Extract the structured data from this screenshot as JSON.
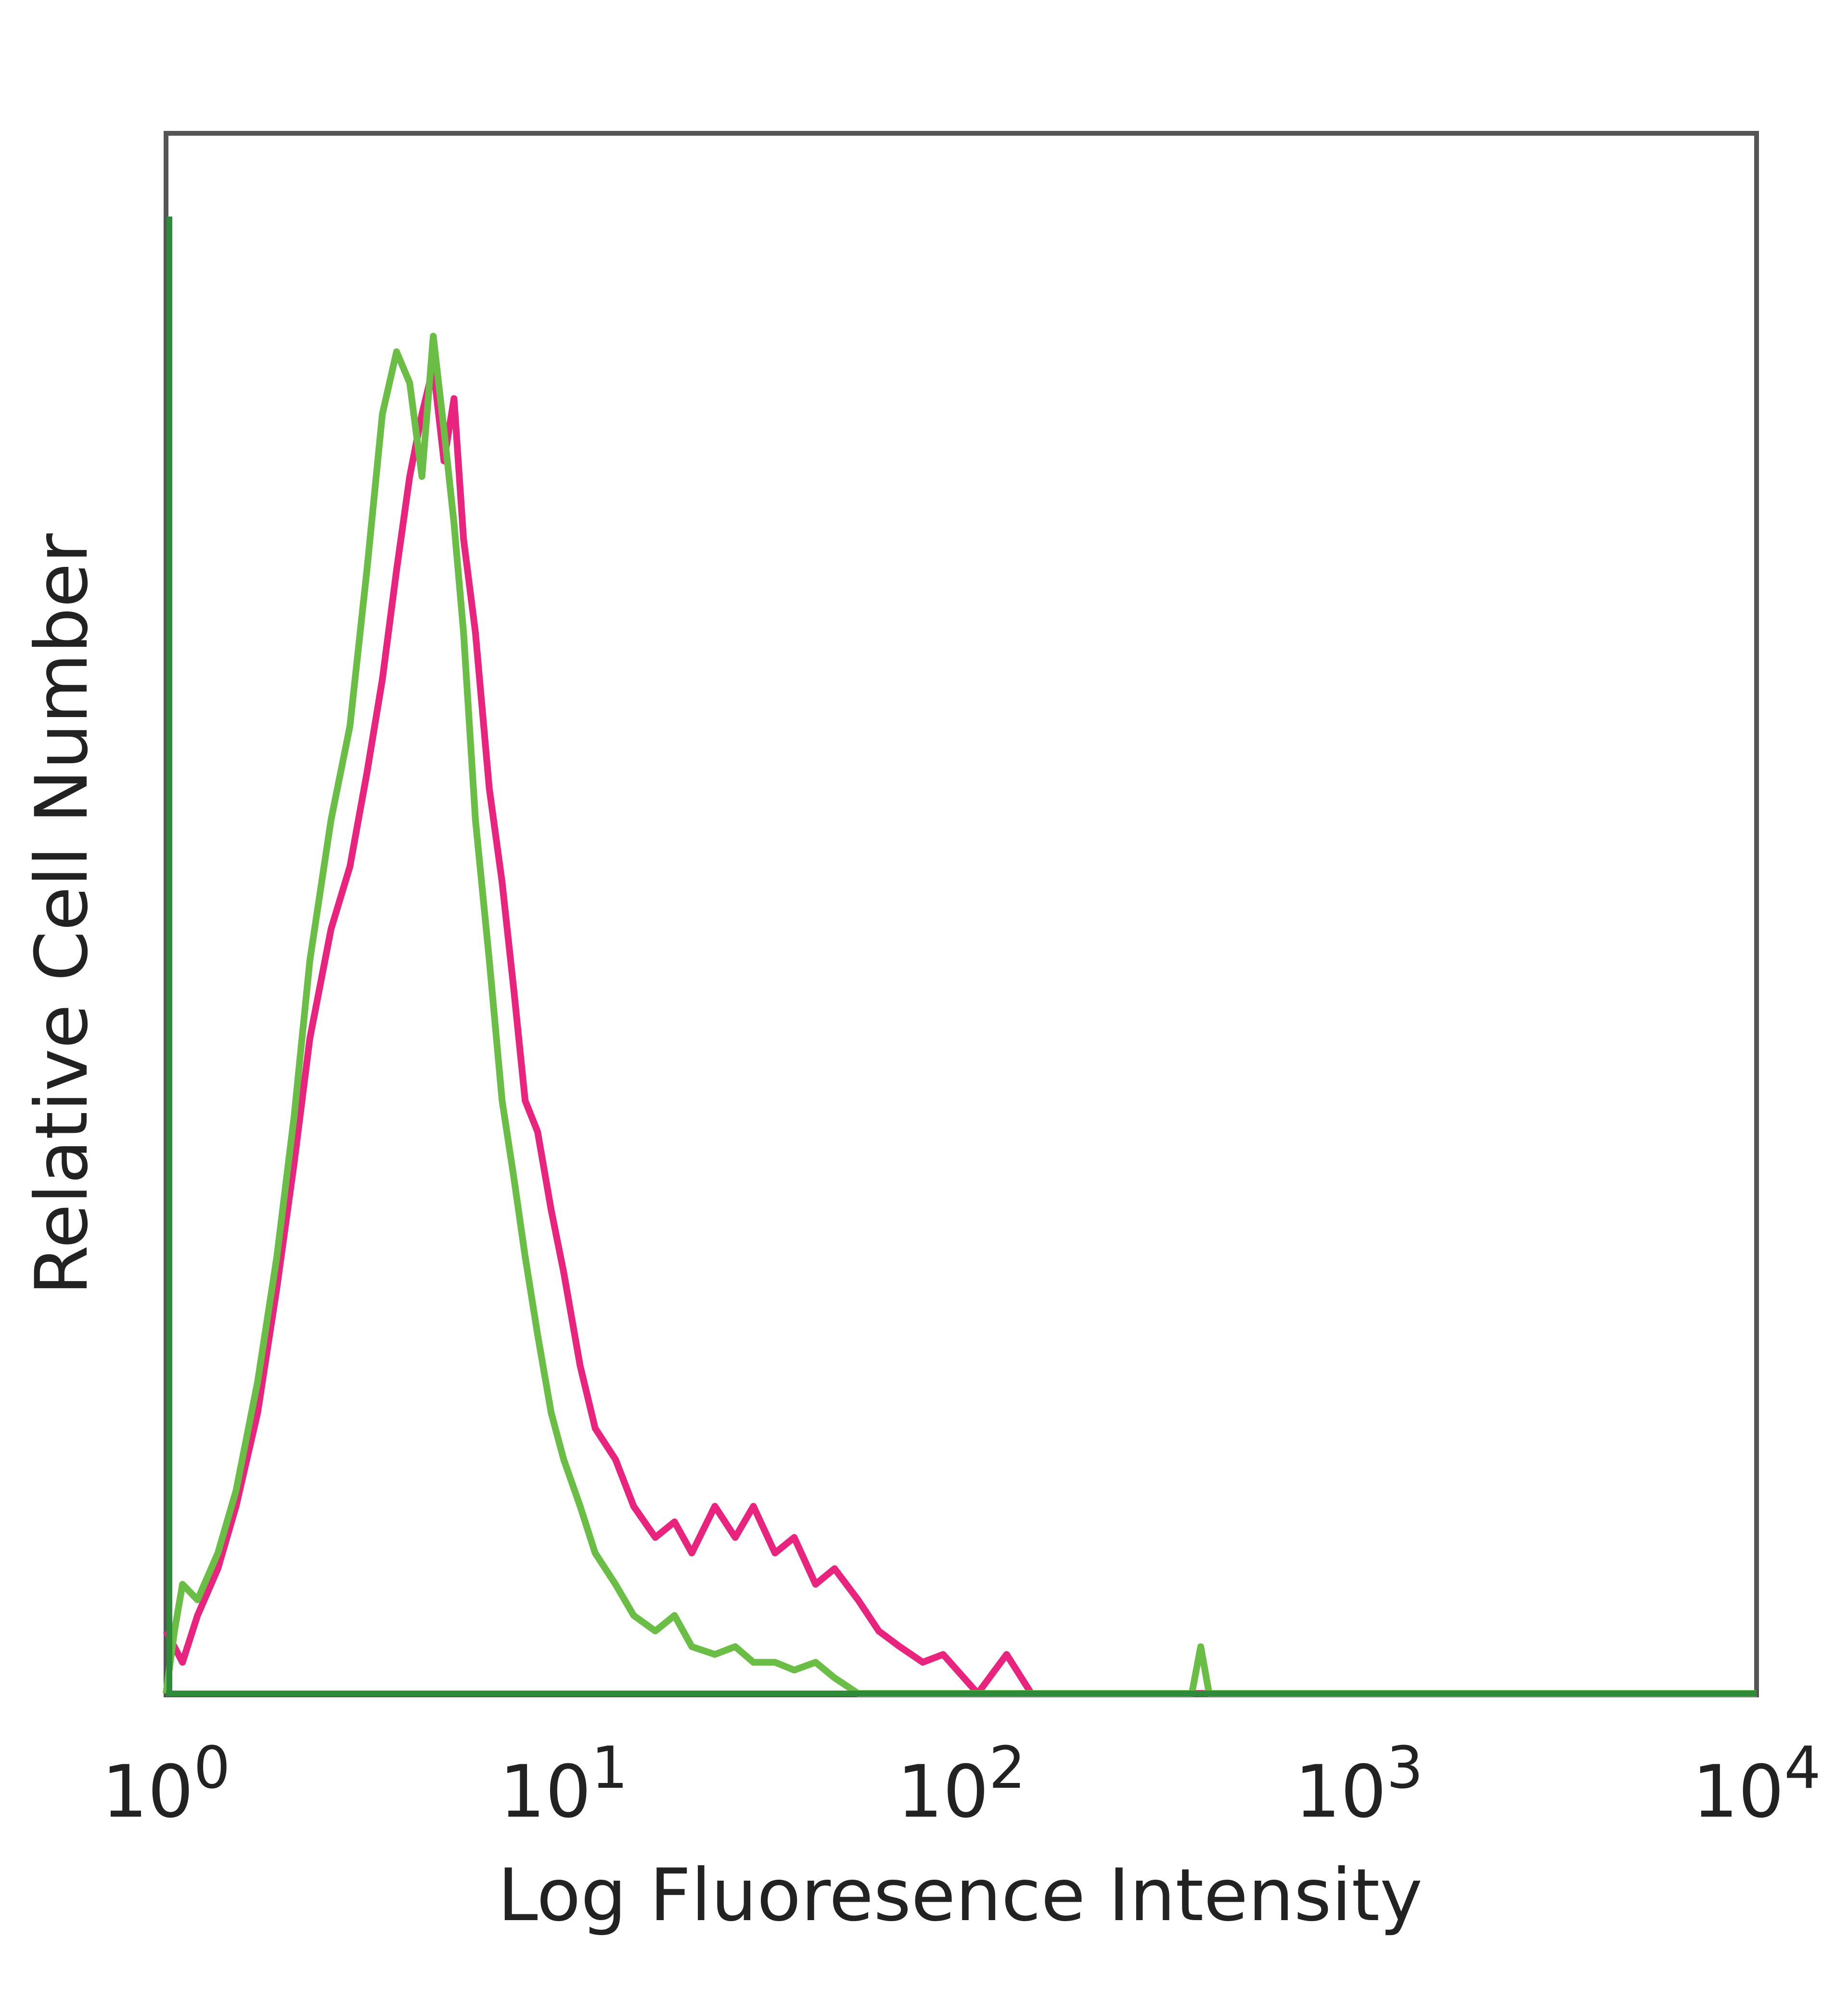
{
  "chart_data": {
    "type": "line",
    "title": "",
    "xlabel": "Log Fluoresence Intensity",
    "ylabel": "Relative Cell Number",
    "x_scale": "log",
    "xlim": [
      1,
      10000
    ],
    "ylim": [
      0,
      1
    ],
    "grid": false,
    "legend": "none",
    "x_ticks": [
      {
        "value": 1,
        "base": "10",
        "exp": "0"
      },
      {
        "value": 10,
        "base": "10",
        "exp": "1"
      },
      {
        "value": 100,
        "base": "10",
        "exp": "2"
      },
      {
        "value": 1000,
        "base": "10",
        "exp": "3"
      },
      {
        "value": 10000,
        "base": "10",
        "exp": "4"
      }
    ],
    "series": [
      {
        "color": "#e8247f",
        "x": [
          1.0,
          1.1,
          1.2,
          1.35,
          1.5,
          1.7,
          1.9,
          2.1,
          2.3,
          2.6,
          2.9,
          3.2,
          3.5,
          3.8,
          4.1,
          4.4,
          4.7,
          5.0,
          5.3,
          5.6,
          6.0,
          6.5,
          7.0,
          7.5,
          8.0,
          8.6,
          9.3,
          10.0,
          11.0,
          12.0,
          13.5,
          15.0,
          17.0,
          19.0,
          21.0,
          24.0,
          27.0,
          30.0,
          34.0,
          38.0,
          43.0,
          48.0,
          55.0,
          62.0,
          70.0,
          80.0,
          90.0,
          110.0,
          130.0,
          150.0,
          200.0,
          400.0,
          1000.0,
          10000.0
        ],
        "y": [
          0.04,
          0.02,
          0.05,
          0.08,
          0.12,
          0.18,
          0.26,
          0.34,
          0.42,
          0.49,
          0.53,
          0.59,
          0.65,
          0.72,
          0.78,
          0.82,
          0.85,
          0.79,
          0.83,
          0.74,
          0.68,
          0.58,
          0.52,
          0.45,
          0.38,
          0.36,
          0.31,
          0.27,
          0.21,
          0.17,
          0.15,
          0.12,
          0.1,
          0.11,
          0.09,
          0.12,
          0.1,
          0.12,
          0.09,
          0.1,
          0.07,
          0.08,
          0.06,
          0.04,
          0.03,
          0.02,
          0.025,
          0.0,
          0.025,
          0.0,
          0.0,
          0.0,
          0.0,
          0.0
        ]
      },
      {
        "color": "#6abd45",
        "x": [
          1.0,
          1.05,
          1.1,
          1.2,
          1.35,
          1.5,
          1.7,
          1.9,
          2.1,
          2.3,
          2.6,
          2.9,
          3.2,
          3.5,
          3.8,
          4.1,
          4.4,
          4.7,
          5.0,
          5.3,
          5.6,
          6.0,
          6.5,
          7.0,
          7.5,
          8.0,
          8.6,
          9.3,
          10.0,
          11.0,
          12.0,
          13.5,
          15.0,
          17.0,
          19.0,
          21.0,
          24.0,
          27.0,
          30.0,
          34.0,
          38.0,
          43.0,
          48.0,
          55.0,
          62.0,
          70.0,
          100.0,
          200.0,
          300.0,
          380.0,
          400.0,
          420.0,
          500.0,
          1000.0,
          10000.0
        ],
        "y": [
          0.0,
          0.04,
          0.07,
          0.06,
          0.09,
          0.13,
          0.2,
          0.28,
          0.37,
          0.47,
          0.56,
          0.62,
          0.72,
          0.82,
          0.86,
          0.84,
          0.78,
          0.87,
          0.81,
          0.75,
          0.68,
          0.56,
          0.47,
          0.38,
          0.33,
          0.28,
          0.23,
          0.18,
          0.15,
          0.12,
          0.09,
          0.07,
          0.05,
          0.04,
          0.05,
          0.03,
          0.025,
          0.03,
          0.02,
          0.02,
          0.015,
          0.02,
          0.01,
          0.0,
          0.0,
          0.0,
          0.0,
          0.0,
          0.0,
          0.0,
          0.03,
          0.0,
          0.0,
          0.0,
          0.0
        ]
      }
    ],
    "baseline_color": "#2e8b3a"
  }
}
